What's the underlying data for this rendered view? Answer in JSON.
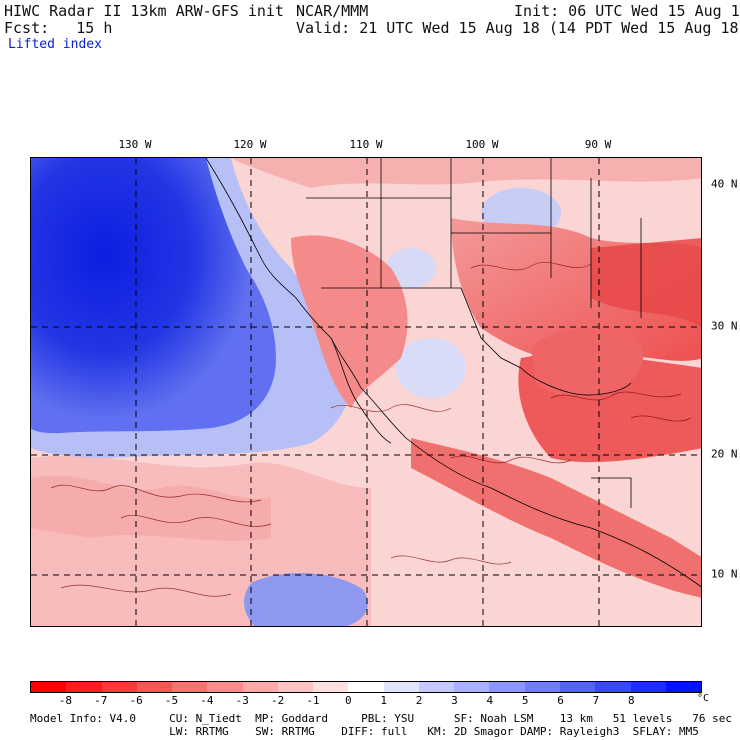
{
  "header": {
    "line1_left": "HIWC Radar II 13km ARW-GFS init",
    "line1_mid": "NCAR/MMM",
    "line1_right": "Init: 06 UTC Wed 15 Aug 18",
    "line2_left": "Fcst:   15 h",
    "line2_right": "Valid: 21 UTC Wed 15 Aug 18 (14 PDT Wed 15 Aug 18)",
    "field_name": "Lifted index"
  },
  "map": {
    "longitude_labels": [
      "130 W",
      "120 W",
      "110 W",
      "100 W",
      "90 W"
    ],
    "latitude_labels": [
      "40 N",
      "30 N",
      "20 N",
      "10 N"
    ],
    "ocean_color": "#1428d8",
    "land_warm_color": "#ee5555"
  },
  "colorbar": {
    "labels": [
      "-8",
      "-7",
      "-6",
      "-5",
      "-4",
      "-3",
      "-2",
      "-1",
      "0",
      "1",
      "2",
      "3",
      "4",
      "5",
      "6",
      "7",
      "8"
    ],
    "unit": "°C",
    "colors": [
      "#ff0000",
      "#ff1c1c",
      "#ff3838",
      "#ff5454",
      "#ff7070",
      "#ff8c8c",
      "#ffa8a8",
      "#ffc4c4",
      "#ffe0e0",
      "#ffffff",
      "#e0e4ff",
      "#c4caff",
      "#a8b0ff",
      "#8c96ff",
      "#707cff",
      "#5462ff",
      "#3848ff",
      "#1c2eff",
      "#0014ff"
    ]
  },
  "footer": {
    "line1": "Model Info: V4.0     CU: N_Tiedt  MP: Goddard     PBL: YSU      SF: Noah LSM    13 km   51 levels   76 sec",
    "line2": "                     LW: RRTMG    SW: RRTMG    DIFF: full   KM: 2D Smagor DAMP: Rayleigh3  SFLAY: MM5"
  }
}
